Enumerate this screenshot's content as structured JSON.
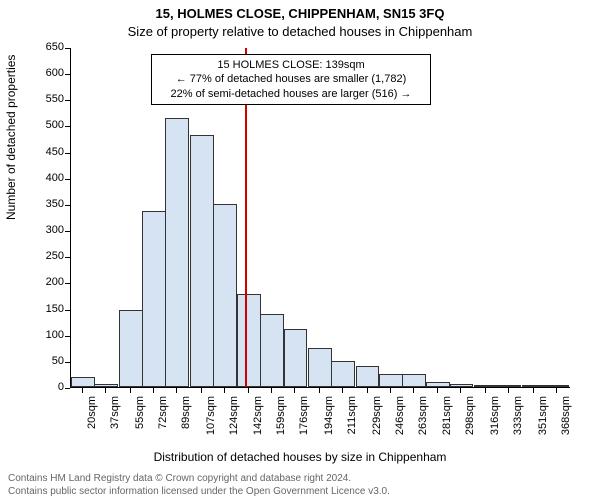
{
  "titles": {
    "line1": "15, HOLMES CLOSE, CHIPPENHAM, SN15 3FQ",
    "line2": "Size of property relative to detached houses in Chippenham"
  },
  "axes": {
    "y_label": "Number of detached properties",
    "x_label": "Distribution of detached houses by size in Chippenham",
    "ylim": [
      0,
      650
    ],
    "ytick_step": 50,
    "label_fontsize": 12
  },
  "chart": {
    "type": "histogram",
    "bar_fill": "#d6e3f3",
    "bar_stroke": "#333333",
    "background": "#ffffff",
    "marker_color": "#d00000",
    "marker_x": 139,
    "x_min": 11,
    "x_step": 17.5,
    "x_ticks": [
      20,
      37,
      55,
      72,
      89,
      107,
      124,
      142,
      159,
      176,
      194,
      211,
      229,
      246,
      263,
      281,
      298,
      316,
      333,
      351,
      368
    ],
    "x_tick_suffix": "sqm",
    "bins": [
      {
        "x": 20,
        "count": 20
      },
      {
        "x": 37,
        "count": 5
      },
      {
        "x": 55,
        "count": 148
      },
      {
        "x": 72,
        "count": 337
      },
      {
        "x": 89,
        "count": 515
      },
      {
        "x": 107,
        "count": 482
      },
      {
        "x": 124,
        "count": 350
      },
      {
        "x": 142,
        "count": 178
      },
      {
        "x": 159,
        "count": 140
      },
      {
        "x": 176,
        "count": 110
      },
      {
        "x": 194,
        "count": 75
      },
      {
        "x": 211,
        "count": 50
      },
      {
        "x": 229,
        "count": 40
      },
      {
        "x": 246,
        "count": 25
      },
      {
        "x": 263,
        "count": 25
      },
      {
        "x": 281,
        "count": 10
      },
      {
        "x": 298,
        "count": 5
      },
      {
        "x": 316,
        "count": 3
      },
      {
        "x": 333,
        "count": 2
      },
      {
        "x": 351,
        "count": 2
      },
      {
        "x": 368,
        "count": 2
      }
    ]
  },
  "annotation": {
    "line1": "15 HOLMES CLOSE: 139sqm",
    "line2": "← 77% of detached houses are smaller (1,782)",
    "line3": "22% of semi-detached houses are larger (516) →"
  },
  "footer": {
    "line1": "Contains HM Land Registry data © Crown copyright and database right 2024.",
    "line2": "Contains public sector information licensed under the Open Government Licence v3.0."
  }
}
